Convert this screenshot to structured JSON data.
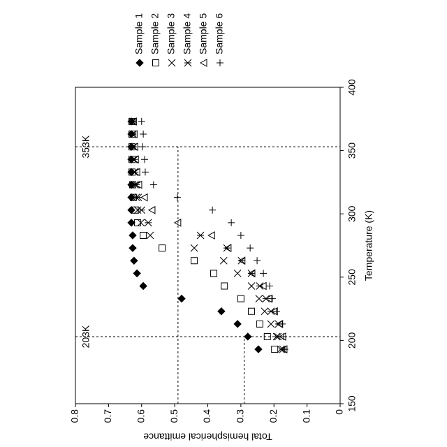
{
  "chart_data": {
    "type": "scatter",
    "x_label": "Temperature (K)",
    "y_label": "Total hemispherical emittance",
    "xlim": [
      150,
      400
    ],
    "xticks": [
      150,
      200,
      250,
      300,
      350,
      400
    ],
    "ylim": [
      0,
      0.8
    ],
    "yticks": [
      0,
      0.1,
      0.2,
      0.3,
      0.4,
      0.5,
      0.6,
      0.7,
      0.8
    ],
    "rotation": -90,
    "legend": "top-right",
    "reference_lines": [
      {
        "label": "203K",
        "x": 203,
        "y": 0.29
      },
      {
        "label": "353K",
        "x": 353,
        "y": 0.49
      }
    ],
    "x": [
      193,
      203,
      213,
      223,
      233,
      243,
      253,
      263,
      273,
      283,
      293,
      303,
      313,
      323,
      333,
      343,
      353,
      363,
      373
    ],
    "series": [
      {
        "name": "Sample 1",
        "color": "#000000",
        "marker": "diamond",
        "values": [
          0.247,
          0.279,
          0.31,
          0.359,
          0.479,
          0.595,
          0.614,
          0.623,
          0.627,
          0.627,
          0.631,
          0.631,
          0.631,
          0.631,
          0.631,
          0.631,
          0.631,
          0.631,
          0.631
        ]
      },
      {
        "name": "Sample 2",
        "color": "#000000",
        "marker": "square",
        "values": [
          0.198,
          0.22,
          0.243,
          0.268,
          0.3,
          0.35,
          0.382,
          0.441,
          0.538,
          0.595,
          0.612,
          0.62,
          0.625,
          0.627,
          0.629,
          0.629,
          0.629,
          0.629,
          0.629
        ]
      },
      {
        "name": "Sample 3",
        "color": "#000000",
        "marker": "x",
        "values": [
          0.179,
          0.192,
          0.209,
          0.228,
          0.245,
          0.268,
          0.31,
          0.352,
          0.441,
          0.574,
          0.602,
          0.612,
          0.616,
          0.62,
          0.622,
          0.624,
          0.624,
          0.627,
          0.627
        ]
      },
      {
        "name": "Sample 4",
        "color": "#000000",
        "marker": "asterisk",
        "values": [
          0.173,
          0.188,
          0.186,
          0.209,
          0.224,
          0.243,
          0.268,
          0.298,
          0.342,
          0.422,
          0.58,
          0.6,
          0.61,
          0.616,
          0.62,
          0.622,
          0.624,
          0.627,
          0.627
        ]
      },
      {
        "name": "Sample 5",
        "color": "#000000",
        "marker": "triangle",
        "values": [
          0.169,
          0.173,
          0.182,
          0.198,
          0.215,
          0.232,
          0.266,
          0.296,
          0.338,
          0.388,
          0.49,
          0.568,
          0.591,
          0.608,
          0.614,
          0.618,
          0.62,
          0.622,
          0.624
        ]
      },
      {
        "name": "Sample 6",
        "color": "#000000",
        "marker": "plus",
        "values": [
          0.167,
          0.171,
          0.175,
          0.192,
          0.205,
          0.213,
          0.232,
          0.251,
          0.272,
          0.3,
          0.329,
          0.386,
          0.492,
          0.564,
          0.589,
          0.591,
          0.597,
          0.595,
          0.6
        ]
      }
    ]
  }
}
